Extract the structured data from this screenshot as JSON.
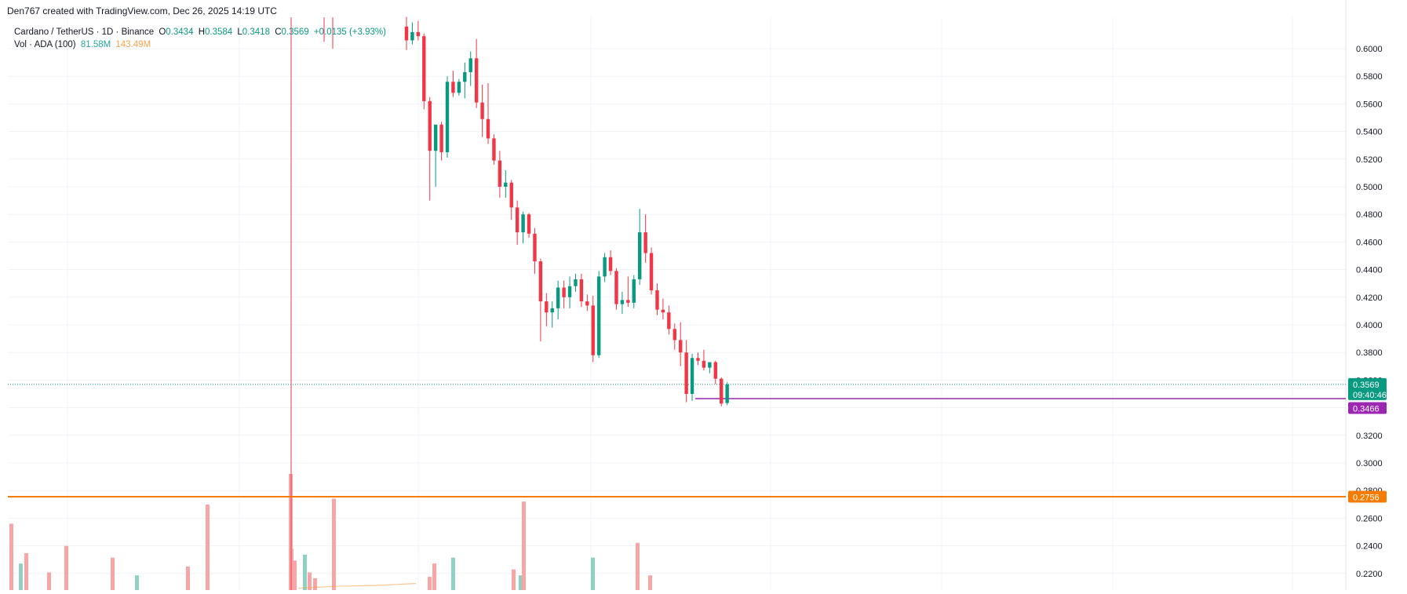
{
  "credit": "Den767 created with TradingView.com, Dec 26, 2025 14:19 UTC",
  "legend": {
    "symbol": "Cardano / TetherUS · 1D · Binance",
    "o_label": "O",
    "o_value": "0.3434",
    "h_label": "H",
    "h_value": "0.3584",
    "l_label": "L",
    "l_value": "0.3418",
    "c_label": "C",
    "c_value": "0.3569",
    "change": "+0.0135 (+3.93%)",
    "vol_label": "Vol · ADA (100)",
    "vol_value": "81.58M",
    "vol_ma": "143.49M"
  },
  "colors": {
    "up": "#089981",
    "down": "#f23645",
    "vol_up": "#8fd0c5",
    "vol_down": "#f7a5a5",
    "level_line": "#f57c00",
    "support_line": "#9c27b0",
    "grid": "#f0f3fa",
    "price_dotted": "#089981"
  },
  "chart_data": {
    "type": "candlestick",
    "ylim": [
      0.21,
      0.62
    ],
    "yticks": [
      "0.6000",
      "0.5800",
      "0.5600",
      "0.5400",
      "0.5200",
      "0.5000",
      "0.4800",
      "0.4600",
      "0.4400",
      "0.4200",
      "0.4000",
      "0.3800",
      "0.3600",
      "0.3400",
      "0.3200",
      "0.3000",
      "0.2800",
      "0.2600",
      "0.2400",
      "0.2200"
    ],
    "current_price": "0.3569",
    "countdown": "09:40:46",
    "support_level": "0.3466",
    "horizontal_level": "0.2756",
    "candles": [
      {
        "o": 0.616,
        "h": 0.623,
        "l": 0.599,
        "c": 0.606
      },
      {
        "o": 0.606,
        "h": 0.619,
        "l": 0.603,
        "c": 0.612
      },
      {
        "o": 0.612,
        "h": 0.62,
        "l": 0.606,
        "c": 0.609
      },
      {
        "o": 0.609,
        "h": 0.611,
        "l": 0.556,
        "c": 0.562
      },
      {
        "o": 0.562,
        "h": 0.565,
        "l": 0.49,
        "c": 0.526
      },
      {
        "o": 0.526,
        "h": 0.544,
        "l": 0.5,
        "c": 0.545
      },
      {
        "o": 0.545,
        "h": 0.547,
        "l": 0.519,
        "c": 0.525
      },
      {
        "o": 0.525,
        "h": 0.58,
        "l": 0.521,
        "c": 0.576
      },
      {
        "o": 0.576,
        "h": 0.584,
        "l": 0.565,
        "c": 0.568
      },
      {
        "o": 0.568,
        "h": 0.578,
        "l": 0.566,
        "c": 0.576
      },
      {
        "o": 0.576,
        "h": 0.59,
        "l": 0.564,
        "c": 0.583
      },
      {
        "o": 0.583,
        "h": 0.598,
        "l": 0.573,
        "c": 0.593
      },
      {
        "o": 0.593,
        "h": 0.607,
        "l": 0.557,
        "c": 0.561
      },
      {
        "o": 0.561,
        "h": 0.574,
        "l": 0.536,
        "c": 0.549
      },
      {
        "o": 0.549,
        "h": 0.575,
        "l": 0.531,
        "c": 0.535
      },
      {
        "o": 0.535,
        "h": 0.538,
        "l": 0.516,
        "c": 0.519
      },
      {
        "o": 0.519,
        "h": 0.526,
        "l": 0.492,
        "c": 0.5
      },
      {
        "o": 0.5,
        "h": 0.512,
        "l": 0.492,
        "c": 0.503
      },
      {
        "o": 0.503,
        "h": 0.505,
        "l": 0.476,
        "c": 0.485
      },
      {
        "o": 0.485,
        "h": 0.49,
        "l": 0.458,
        "c": 0.467
      },
      {
        "o": 0.467,
        "h": 0.482,
        "l": 0.459,
        "c": 0.48
      },
      {
        "o": 0.48,
        "h": 0.481,
        "l": 0.463,
        "c": 0.466
      },
      {
        "o": 0.466,
        "h": 0.47,
        "l": 0.437,
        "c": 0.446
      },
      {
        "o": 0.446,
        "h": 0.448,
        "l": 0.388,
        "c": 0.417
      },
      {
        "o": 0.417,
        "h": 0.423,
        "l": 0.399,
        "c": 0.409
      },
      {
        "o": 0.409,
        "h": 0.417,
        "l": 0.398,
        "c": 0.412
      },
      {
        "o": 0.412,
        "h": 0.432,
        "l": 0.404,
        "c": 0.427
      },
      {
        "o": 0.427,
        "h": 0.432,
        "l": 0.412,
        "c": 0.42
      },
      {
        "o": 0.42,
        "h": 0.435,
        "l": 0.412,
        "c": 0.428
      },
      {
        "o": 0.428,
        "h": 0.437,
        "l": 0.424,
        "c": 0.433
      },
      {
        "o": 0.433,
        "h": 0.437,
        "l": 0.413,
        "c": 0.417
      },
      {
        "o": 0.417,
        "h": 0.422,
        "l": 0.41,
        "c": 0.414
      },
      {
        "o": 0.414,
        "h": 0.421,
        "l": 0.373,
        "c": 0.378
      },
      {
        "o": 0.378,
        "h": 0.439,
        "l": 0.376,
        "c": 0.435
      },
      {
        "o": 0.435,
        "h": 0.452,
        "l": 0.431,
        "c": 0.449
      },
      {
        "o": 0.449,
        "h": 0.454,
        "l": 0.436,
        "c": 0.439
      },
      {
        "o": 0.439,
        "h": 0.441,
        "l": 0.411,
        "c": 0.415
      },
      {
        "o": 0.415,
        "h": 0.424,
        "l": 0.408,
        "c": 0.418
      },
      {
        "o": 0.418,
        "h": 0.435,
        "l": 0.413,
        "c": 0.416
      },
      {
        "o": 0.416,
        "h": 0.436,
        "l": 0.412,
        "c": 0.433
      },
      {
        "o": 0.433,
        "h": 0.484,
        "l": 0.429,
        "c": 0.467
      },
      {
        "o": 0.467,
        "h": 0.48,
        "l": 0.445,
        "c": 0.452
      },
      {
        "o": 0.452,
        "h": 0.456,
        "l": 0.422,
        "c": 0.425
      },
      {
        "o": 0.425,
        "h": 0.43,
        "l": 0.407,
        "c": 0.411
      },
      {
        "o": 0.411,
        "h": 0.419,
        "l": 0.404,
        "c": 0.409
      },
      {
        "o": 0.409,
        "h": 0.414,
        "l": 0.393,
        "c": 0.397
      },
      {
        "o": 0.397,
        "h": 0.401,
        "l": 0.382,
        "c": 0.389
      },
      {
        "o": 0.389,
        "h": 0.402,
        "l": 0.37,
        "c": 0.38
      },
      {
        "o": 0.38,
        "h": 0.389,
        "l": 0.344,
        "c": 0.35
      },
      {
        "o": 0.35,
        "h": 0.379,
        "l": 0.345,
        "c": 0.376
      },
      {
        "o": 0.376,
        "h": 0.38,
        "l": 0.371,
        "c": 0.374
      },
      {
        "o": 0.374,
        "h": 0.382,
        "l": 0.367,
        "c": 0.369
      },
      {
        "o": 0.369,
        "h": 0.373,
        "l": 0.365,
        "c": 0.373
      },
      {
        "o": 0.373,
        "h": 0.374,
        "l": 0.357,
        "c": 0.361
      },
      {
        "o": 0.361,
        "h": 0.362,
        "l": 0.341,
        "c": 0.343
      },
      {
        "o": 0.3434,
        "h": 0.3584,
        "l": 0.3418,
        "c": 0.3569
      }
    ],
    "volume": [
      {
        "v": 45,
        "up": false
      },
      {
        "v": 18,
        "up": true
      },
      {
        "v": 25,
        "up": false
      },
      {
        "v": 12,
        "up": false
      },
      {
        "v": 30,
        "up": false
      },
      {
        "v": 22,
        "up": false
      },
      {
        "v": 10,
        "up": true
      },
      {
        "v": 16,
        "up": false
      },
      {
        "v": 58,
        "up": false
      },
      {
        "v": 28,
        "up": false
      },
      {
        "v": 20,
        "up": false
      },
      {
        "v": 24,
        "up": true
      },
      {
        "v": 12,
        "up": false
      },
      {
        "v": 8,
        "up": false
      },
      {
        "v": 62,
        "up": false
      },
      {
        "v": 9,
        "up": false
      },
      {
        "v": 18,
        "up": false
      },
      {
        "v": 22,
        "up": true
      },
      {
        "v": 14,
        "up": false
      },
      {
        "v": 10,
        "up": true
      },
      {
        "v": 60,
        "up": false
      },
      {
        "v": 22,
        "up": true
      },
      {
        "v": 32,
        "up": false
      },
      {
        "v": 10,
        "up": false
      }
    ],
    "volume_ma": [
      4,
      6,
      8,
      9,
      10,
      12,
      14
    ]
  }
}
